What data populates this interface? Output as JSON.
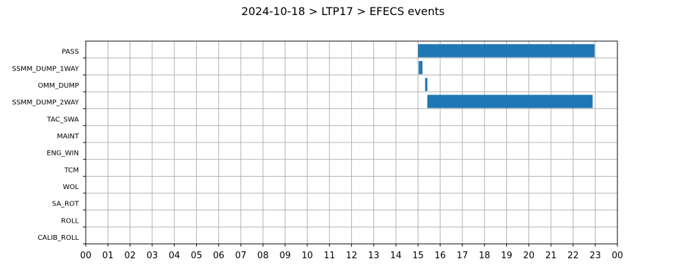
{
  "chart_data": {
    "type": "gantt",
    "title": "2024-10-18 > LTP17 > EFECS events",
    "xlabel": "",
    "ylabel": "",
    "xlim": [
      0,
      24
    ],
    "x_tick_labels": [
      "00",
      "01",
      "02",
      "03",
      "04",
      "05",
      "06",
      "07",
      "08",
      "09",
      "10",
      "11",
      "12",
      "13",
      "14",
      "15",
      "16",
      "17",
      "18",
      "19",
      "20",
      "21",
      "22",
      "23",
      "00"
    ],
    "grid": true,
    "bar_color": "#1f77b4",
    "categories": [
      "PASS",
      "SSMM_DUMP_1WAY",
      "OMM_DUMP",
      "SSMM_DUMP_2WAY",
      "TAC_SWA",
      "MAINT",
      "ENG_WIN",
      "TCM",
      "WOL",
      "SA_ROT",
      "ROLL",
      "CALIB_ROLL"
    ],
    "events": [
      {
        "category": "PASS",
        "start": 15.0,
        "end": 22.97
      },
      {
        "category": "SSMM_DUMP_1WAY",
        "start": 15.03,
        "end": 15.2
      },
      {
        "category": "OMM_DUMP",
        "start": 15.32,
        "end": 15.42
      },
      {
        "category": "SSMM_DUMP_2WAY",
        "start": 15.42,
        "end": 22.88
      }
    ]
  }
}
